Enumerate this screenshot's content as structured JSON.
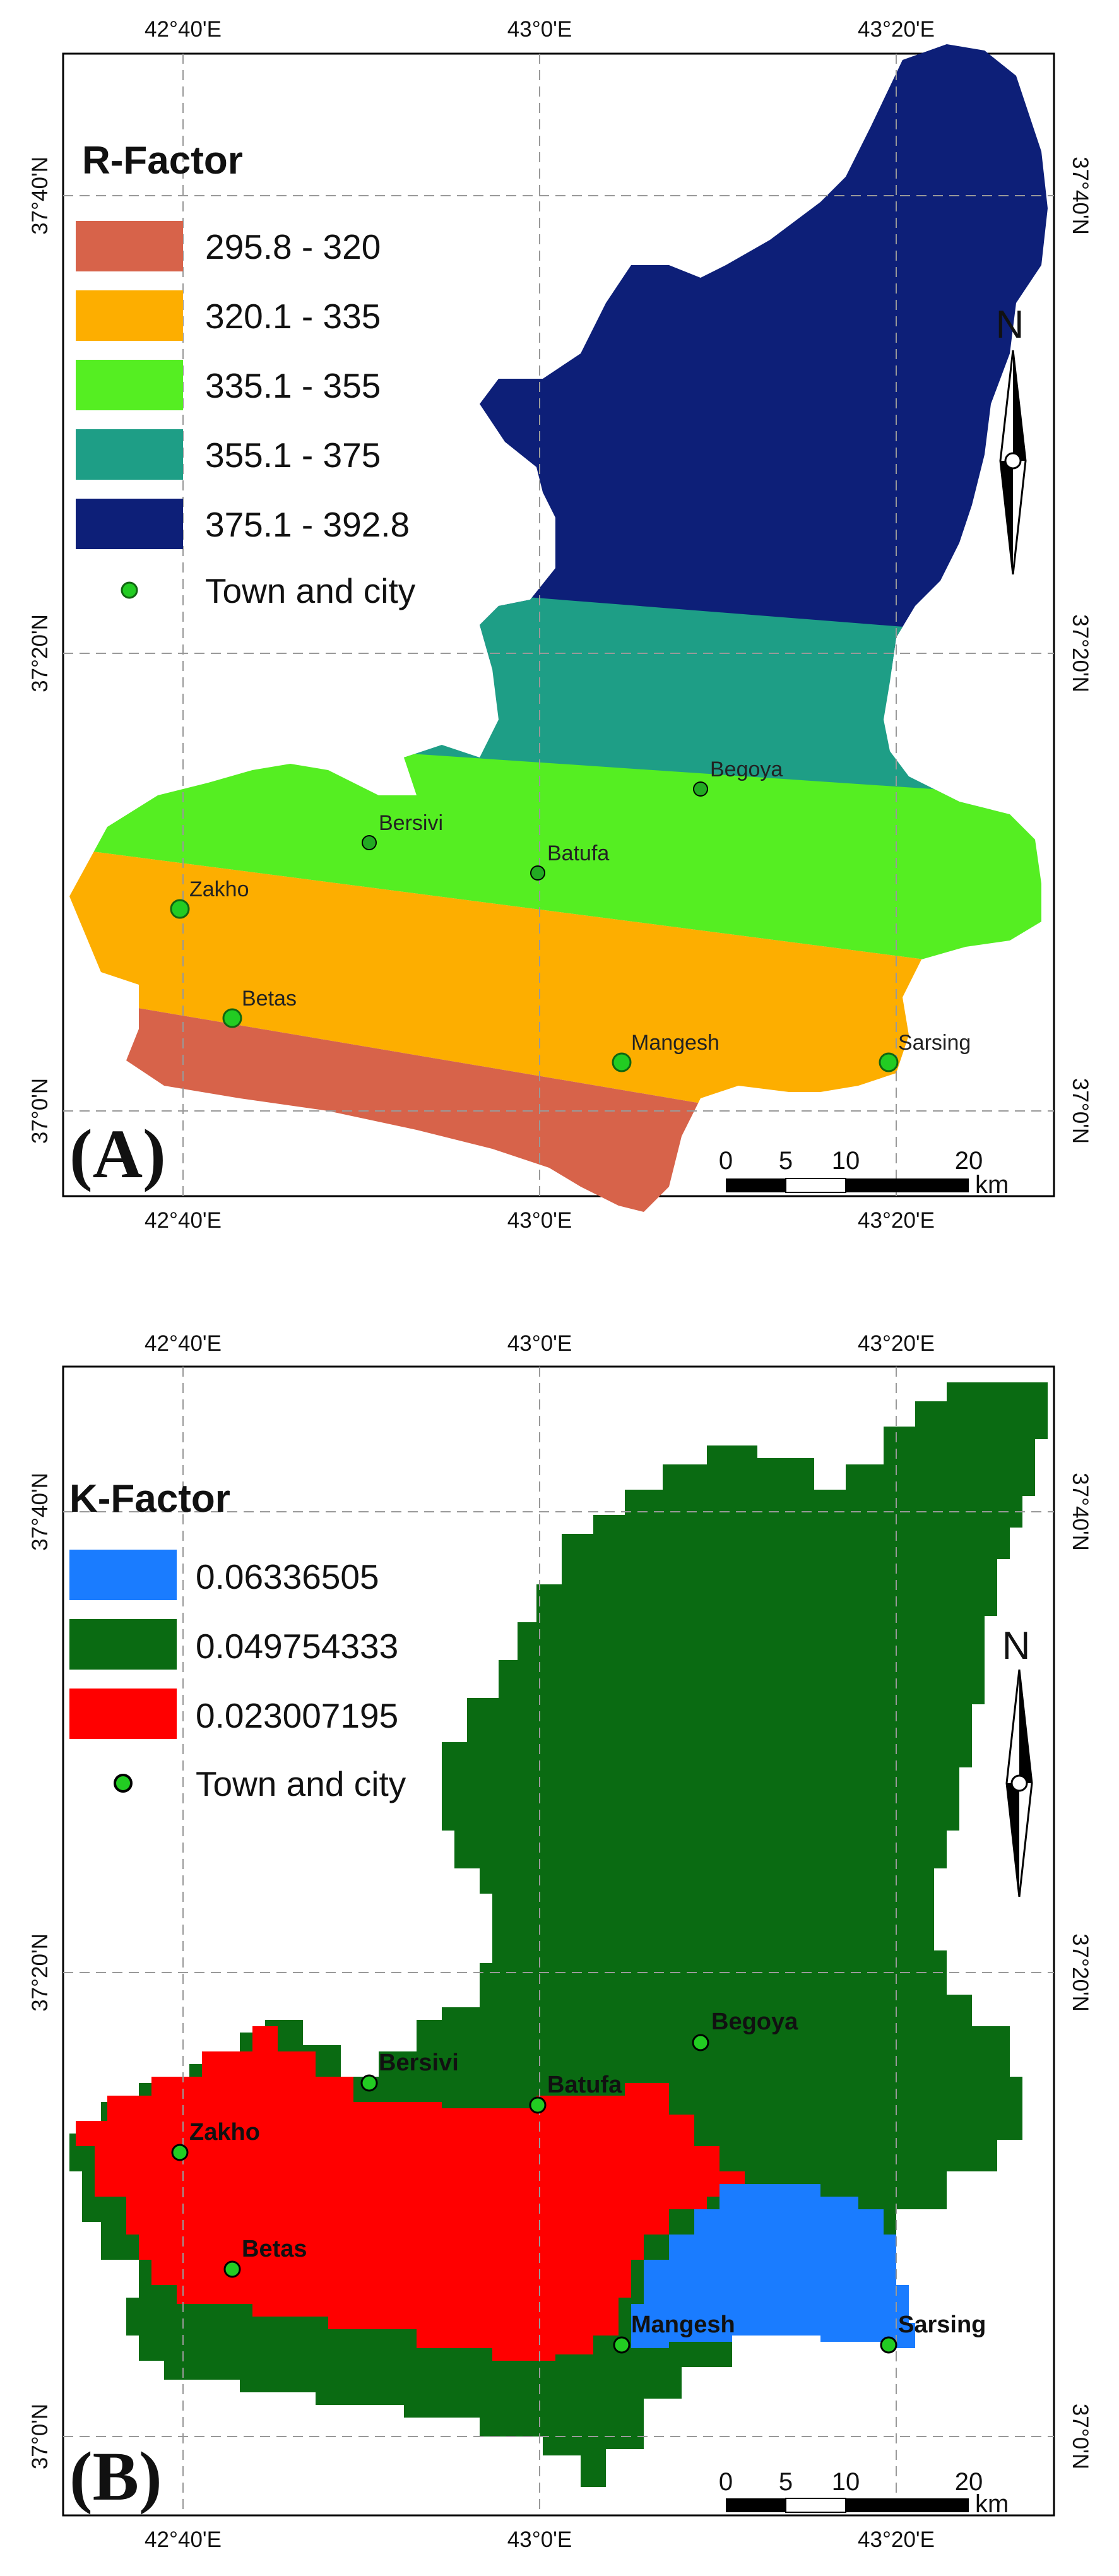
{
  "maps": [
    {
      "panel_label": "(A)",
      "legend": {
        "title": "R-Factor",
        "items": [
          {
            "label": "295.8 - 320",
            "color": "#d7634a"
          },
          {
            "label": "320.1 - 335",
            "color": "#fdae00"
          },
          {
            "label": "335.1 - 355",
            "color": "#55ee22"
          },
          {
            "label": "355.1 - 375",
            "color": "#1e9e86"
          },
          {
            "label": "375.1 - 392.8",
            "color": "#0d1f78"
          }
        ],
        "town_label": "Town and city"
      },
      "ticks": {
        "top": [
          "42°40'E",
          "43°0'E",
          "43°20'E"
        ],
        "bottom": [
          "42°40'E",
          "43°0'E",
          "43°20'E"
        ],
        "left": [
          "37°40'N",
          "37°20'N",
          "37°0'N"
        ],
        "right": [
          "37°40'N",
          "37°20'N",
          "37°0'N"
        ]
      },
      "towns": [
        "Bersivi",
        "Begoya",
        "Batufa",
        "Zakho",
        "Betas",
        "Mangesh",
        "Sarsing"
      ],
      "scale_labels": [
        "0",
        "5",
        "10",
        "20",
        "km"
      ],
      "north_label": "N"
    },
    {
      "panel_label": "(B)",
      "legend": {
        "title": "K-Factor",
        "items": [
          {
            "label": "0.06336505",
            "color": "#1a7cff"
          },
          {
            "label": "0.049754333",
            "color": "#0a6b12"
          },
          {
            "label": "0.023007195",
            "color": "#ff0000"
          }
        ],
        "town_label": "Town and city"
      },
      "ticks": {
        "top": [
          "42°40'E",
          "43°0'E",
          "43°20'E"
        ],
        "bottom": [
          "42°40'E",
          "43°0'E",
          "43°20'E"
        ],
        "left": [
          "37°40'N",
          "37°20'N",
          "37°0'N"
        ],
        "right": [
          "37°40'N",
          "37°20'N",
          "37°0'N"
        ]
      },
      "towns": [
        "Begoya",
        "Bersivi",
        "Batufa",
        "Zakho",
        "Betas",
        "Mangesh",
        "Sarsing"
      ],
      "scale_labels": [
        "0",
        "5",
        "10",
        "20",
        "km"
      ],
      "north_label": "N"
    }
  ]
}
